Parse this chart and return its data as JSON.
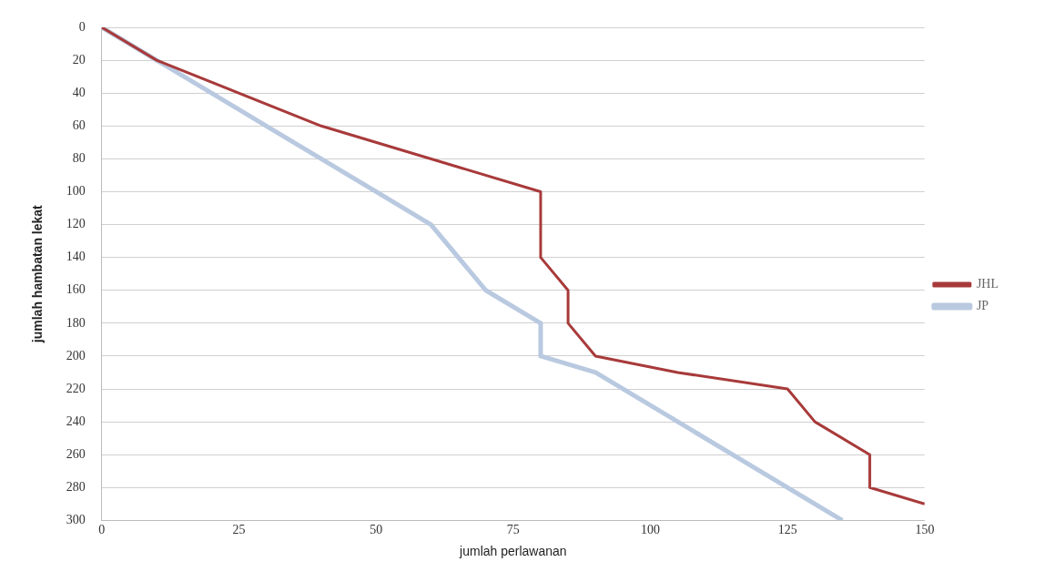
{
  "chart_data": {
    "type": "line",
    "xlabel": "jumlah perlawanan",
    "ylabel": "jumlah hambatan lekat",
    "xlim": [
      0,
      150
    ],
    "xticks": [
      0,
      25,
      50,
      75,
      100,
      125,
      150
    ],
    "ylim": [
      300,
      0
    ],
    "yticks": [
      0,
      20,
      40,
      60,
      80,
      100,
      120,
      140,
      160,
      180,
      200,
      220,
      240,
      260,
      280,
      300
    ],
    "grid": "y",
    "legend": "right",
    "marker": "none",
    "line_style": "solid",
    "series": [
      {
        "name": "JP",
        "color": "#b9c9e0",
        "x": [
          0,
          10,
          20,
          30,
          40,
          50,
          60,
          65,
          70,
          80,
          80,
          90,
          135
        ],
        "values": [
          0,
          20,
          40,
          60,
          80,
          100,
          120,
          140,
          160,
          180,
          200,
          210,
          300
        ]
      },
      {
        "name": "JHL",
        "color": "#a83a3a",
        "x": [
          0,
          10,
          40,
          80,
          80,
          85,
          85,
          90,
          105,
          125,
          130,
          140,
          140,
          150
        ],
        "values": [
          0,
          20,
          60,
          100,
          140,
          160,
          180,
          200,
          210,
          220,
          240,
          260,
          280,
          290
        ]
      }
    ]
  }
}
